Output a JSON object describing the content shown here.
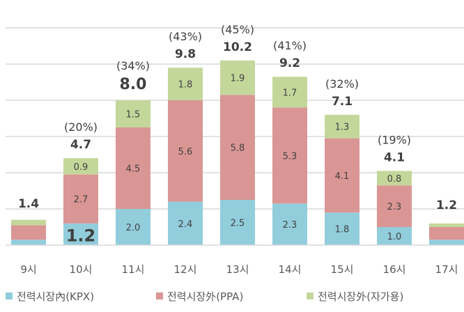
{
  "chart_data": {
    "type": "bar",
    "stacked": true,
    "categories": [
      "9시",
      "10시",
      "11시",
      "12시",
      "13시",
      "14시",
      "15시",
      "16시",
      "17시"
    ],
    "series": [
      {
        "name": "전력시장內(KPX)",
        "color": "#92CDDC",
        "values": [
          0.3,
          1.2,
          2.0,
          2.4,
          2.5,
          2.3,
          1.8,
          1.0,
          0.3
        ]
      },
      {
        "name": "전력시장外(PPA)",
        "color": "#DA9694",
        "values": [
          0.8,
          2.7,
          4.5,
          5.6,
          5.8,
          5.3,
          4.1,
          2.3,
          0.7
        ]
      },
      {
        "name": "전력시장外(자가용)",
        "color": "#C4D79B",
        "values": [
          0.3,
          0.9,
          1.5,
          1.8,
          1.9,
          1.7,
          1.3,
          0.8,
          0.2
        ]
      }
    ],
    "segment_labels_shown": [
      [
        null,
        "1.2",
        "2.0",
        "2.4",
        "2.5",
        "2.3",
        "1.8",
        "1.0",
        null
      ],
      [
        null,
        "2.7",
        "4.5",
        "5.6",
        "5.8",
        "5.3",
        "4.1",
        "2.3",
        null
      ],
      [
        null,
        "0.9",
        "1.5",
        "1.8",
        "1.9",
        "1.7",
        "1.3",
        "0.8",
        null
      ]
    ],
    "totals": [
      "1.4",
      "4.7",
      "8.0",
      "9.8",
      "10.2",
      "9.2",
      "7.1",
      "4.1",
      "1.2"
    ],
    "shares": [
      "",
      "(20%)",
      "(34%)",
      "(43%)",
      "(45%)",
      "(41%)",
      "(32%)",
      "(19%)",
      ""
    ],
    "ylim": [
      0,
      12
    ],
    "grid": true,
    "legend": "bottom"
  }
}
